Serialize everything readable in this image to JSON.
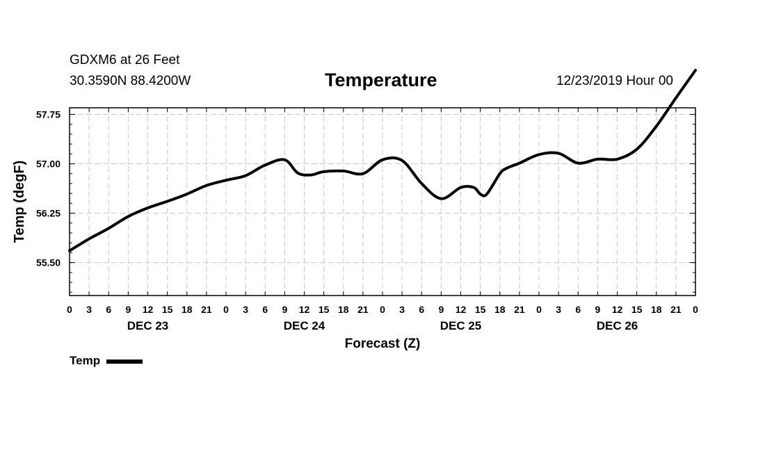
{
  "header": {
    "station": "GDXM6 at 26 Feet",
    "coords": "30.3590N 88.4200W",
    "title": "Temperature",
    "issued": "12/23/2019 Hour 00"
  },
  "legend": {
    "label": "Temp"
  },
  "colors": {
    "line": "#000000",
    "grid": "#c8c8c8",
    "frame": "#000000"
  },
  "chart_data": {
    "type": "line",
    "title": "Temperature",
    "xlabel": "Forecast (Z)",
    "ylabel": "Temp (degF)",
    "xlim": [
      0,
      96
    ],
    "ylim": [
      55.0,
      57.85
    ],
    "yticks": [
      55.5,
      56.25,
      57.0,
      57.75
    ],
    "ytick_labels": [
      "55.50",
      "56.25",
      "57.00",
      "57.75"
    ],
    "xtick_hours": [
      0,
      3,
      6,
      9,
      12,
      15,
      18,
      21,
      24,
      27,
      30,
      33,
      36,
      39,
      42,
      45,
      48,
      51,
      54,
      57,
      60,
      63,
      66,
      69,
      72,
      75,
      78,
      81,
      84,
      87,
      90,
      93,
      96
    ],
    "xtick_labels": [
      "0",
      "3",
      "6",
      "9",
      "12",
      "15",
      "18",
      "21",
      "0",
      "3",
      "6",
      "9",
      "12",
      "15",
      "18",
      "21",
      "0",
      "3",
      "6",
      "9",
      "12",
      "15",
      "18",
      "21",
      "0",
      "3",
      "6",
      "9",
      "12",
      "15",
      "18",
      "21",
      "0"
    ],
    "day_labels": [
      {
        "hour": 12,
        "label": "DEC 23"
      },
      {
        "hour": 36,
        "label": "DEC 24"
      },
      {
        "hour": 60,
        "label": "DEC 25"
      },
      {
        "hour": 84,
        "label": "DEC 26"
      }
    ],
    "grid": true,
    "legend": "below-left",
    "series": [
      {
        "name": "Temp",
        "x": [
          0,
          3,
          6,
          9,
          12,
          15,
          18,
          21,
          24,
          27,
          30,
          33,
          35,
          37,
          39,
          42,
          45,
          48,
          51,
          54,
          57,
          60,
          62,
          63,
          64,
          66,
          67,
          69,
          72,
          75,
          78,
          81,
          84,
          87,
          90,
          93,
          96
        ],
        "values": [
          55.68,
          55.86,
          56.02,
          56.2,
          56.33,
          56.43,
          56.54,
          56.67,
          56.75,
          56.82,
          56.98,
          57.06,
          56.86,
          56.83,
          56.88,
          56.89,
          56.85,
          57.06,
          57.05,
          56.7,
          56.47,
          56.64,
          56.64,
          56.54,
          56.54,
          56.85,
          56.93,
          57.01,
          57.14,
          57.16,
          57.01,
          57.07,
          57.07,
          57.22,
          57.57,
          58.0,
          58.42
        ]
      }
    ]
  }
}
